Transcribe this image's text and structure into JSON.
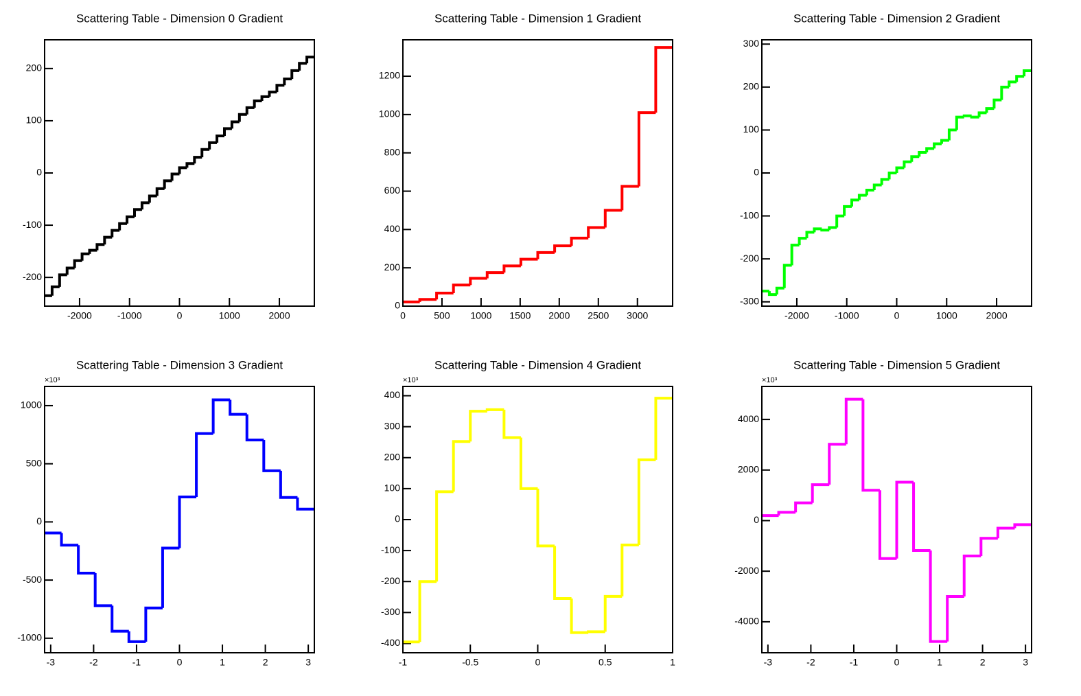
{
  "chart_data": [
    {
      "type": "histogram",
      "title": "Scattering Table - Dimension 0 Gradient",
      "color": "#000000",
      "xlim": [
        -2700,
        2700
      ],
      "ylim": [
        -255,
        255
      ],
      "xticks": [
        -2000,
        -1000,
        0,
        1000,
        2000
      ],
      "yticks": [
        -200,
        -100,
        0,
        100,
        200
      ],
      "bins": [
        -2700,
        -2550,
        -2400,
        -2250,
        -2100,
        -1950,
        -1800,
        -1650,
        -1500,
        -1350,
        -1200,
        -1050,
        -900,
        -750,
        -600,
        -450,
        -300,
        -150,
        0,
        150,
        300,
        450,
        600,
        750,
        900,
        1050,
        1200,
        1350,
        1500,
        1650,
        1800,
        1950,
        2100,
        2250,
        2400,
        2550,
        2700
      ],
      "values": [
        -235,
        -218,
        -195,
        -182,
        -168,
        -155,
        -148,
        -137,
        -123,
        -110,
        -97,
        -84,
        -70,
        -57,
        -44,
        -30,
        -15,
        -2,
        10,
        18,
        30,
        45,
        58,
        71,
        85,
        98,
        112,
        125,
        138,
        146,
        155,
        168,
        180,
        196,
        210,
        222
      ]
    },
    {
      "type": "histogram",
      "title": "Scattering Table - Dimension 1 Gradient",
      "color": "#ff0000",
      "xlim": [
        0,
        3450
      ],
      "ylim": [
        0,
        1390
      ],
      "xticks": [
        0,
        500,
        1000,
        1500,
        2000,
        2500,
        3000
      ],
      "yticks": [
        0,
        200,
        400,
        600,
        800,
        1000,
        1200
      ],
      "bins": [
        0,
        216,
        431,
        647,
        863,
        1078,
        1294,
        1509,
        1725,
        1941,
        2156,
        2372,
        2588,
        2803,
        3019,
        3234,
        3450
      ],
      "values": [
        22,
        35,
        68,
        110,
        145,
        175,
        210,
        245,
        280,
        315,
        355,
        410,
        500,
        625,
        1010,
        1350
      ]
    },
    {
      "type": "histogram",
      "title": "Scattering Table - Dimension 2 Gradient",
      "color": "#00ff00",
      "xlim": [
        -2700,
        2700
      ],
      "ylim": [
        -310,
        310
      ],
      "xticks": [
        -2000,
        -1000,
        0,
        1000,
        2000
      ],
      "yticks": [
        -300,
        -200,
        -100,
        0,
        100,
        200,
        300
      ],
      "bins": [
        -2700,
        -2550,
        -2400,
        -2250,
        -2100,
        -1950,
        -1800,
        -1650,
        -1500,
        -1350,
        -1200,
        -1050,
        -900,
        -750,
        -600,
        -450,
        -300,
        -150,
        0,
        150,
        300,
        450,
        600,
        750,
        900,
        1050,
        1200,
        1350,
        1500,
        1650,
        1800,
        1950,
        2100,
        2250,
        2400,
        2550,
        2700
      ],
      "values": [
        -275,
        -283,
        -268,
        -215,
        -168,
        -152,
        -138,
        -130,
        -133,
        -127,
        -100,
        -78,
        -63,
        -52,
        -40,
        -28,
        -15,
        0,
        12,
        26,
        38,
        48,
        57,
        68,
        76,
        100,
        130,
        133,
        130,
        140,
        150,
        170,
        200,
        212,
        225,
        238
      ]
    },
    {
      "type": "histogram",
      "title": "Scattering Table - Dimension 3 Gradient",
      "color": "#0000ff",
      "y_multiplier": "×10³",
      "xlim": [
        -3.1416,
        3.1416
      ],
      "ylim": [
        -1125,
        1165
      ],
      "xticks": [
        -3,
        -2,
        -1,
        0,
        1,
        2,
        3
      ],
      "yticks": [
        -1000,
        -500,
        0,
        500,
        1000
      ],
      "bins": [
        -3.1416,
        -2.7489,
        -2.3562,
        -1.9635,
        -1.5708,
        -1.1781,
        -0.7854,
        -0.3927,
        0,
        0.3927,
        0.7854,
        1.1781,
        1.5708,
        1.9635,
        2.3562,
        2.7489,
        3.1416
      ],
      "values": [
        -95,
        -200,
        -440,
        -720,
        -940,
        -1030,
        -740,
        -225,
        215,
        760,
        1050,
        925,
        705,
        440,
        210,
        110
      ]
    },
    {
      "type": "histogram",
      "title": "Scattering Table - Dimension 4 Gradient",
      "color": "#ffff00",
      "y_multiplier": "×10³",
      "xlim": [
        -1,
        1
      ],
      "ylim": [
        -430,
        430
      ],
      "xticks": [
        -1,
        -0.5,
        0,
        0.5,
        1
      ],
      "yticks": [
        -400,
        -300,
        -200,
        -100,
        0,
        100,
        200,
        300,
        400
      ],
      "bins": [
        -1,
        -0.875,
        -0.75,
        -0.625,
        -0.5,
        -0.375,
        -0.25,
        -0.125,
        0,
        0.125,
        0.25,
        0.375,
        0.5,
        0.625,
        0.75,
        0.875,
        1
      ],
      "values": [
        -395,
        -200,
        90,
        252,
        350,
        355,
        265,
        100,
        -85,
        -255,
        -365,
        -362,
        -248,
        -82,
        193,
        392
      ]
    },
    {
      "type": "histogram",
      "title": "Scattering Table - Dimension 5 Gradient",
      "color": "#ff00ff",
      "y_multiplier": "×10³",
      "xlim": [
        -3.1416,
        3.1416
      ],
      "ylim": [
        -5225,
        5305
      ],
      "xticks": [
        -3,
        -2,
        -1,
        0,
        1,
        2,
        3
      ],
      "yticks": [
        -4000,
        -2000,
        0,
        2000,
        4000
      ],
      "bins": [
        -3.1416,
        -2.7489,
        -2.3562,
        -1.9635,
        -1.5708,
        -1.1781,
        -0.7854,
        -0.3927,
        0,
        0.3927,
        0.7854,
        1.1781,
        1.5708,
        1.9635,
        2.3562,
        2.7489,
        3.1416
      ],
      "values": [
        200,
        330,
        700,
        1420,
        3020,
        4800,
        1200,
        -1500,
        1520,
        -1180,
        -4780,
        -3000,
        -1400,
        -700,
        -300,
        -160
      ]
    }
  ]
}
